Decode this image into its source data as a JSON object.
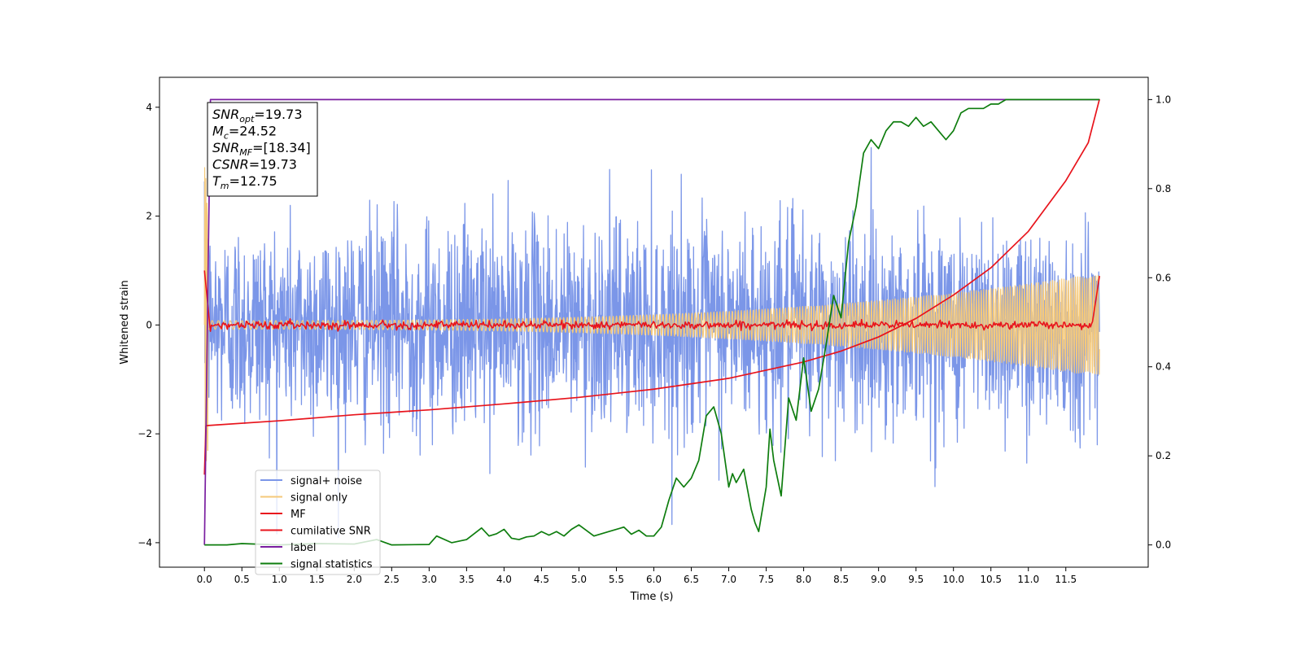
{
  "chart_data": {
    "type": "line",
    "xlabel": "Time (s)",
    "ylabel": "Whitened strain",
    "xlim": [
      -0.6,
      12.6
    ],
    "ylim": [
      -4.45,
      4.55
    ],
    "y2lim": [
      -0.05,
      1.05
    ],
    "x_ticks": [
      0,
      0.5,
      1,
      1.5,
      2,
      2.5,
      3,
      3.5,
      4,
      4.5,
      5,
      5.5,
      6,
      6.5,
      7,
      7.5,
      8,
      8.5,
      9,
      9.5,
      10,
      10.5,
      11,
      11.5
    ],
    "x_tick_labels": [
      "0.0",
      "0.5",
      "1.0",
      "1.5",
      "2.0",
      "2.5",
      "3.0",
      "3.5",
      "4.0",
      "4.5",
      "5.0",
      "5.5",
      "6.0",
      "6.5",
      "7.0",
      "7.5",
      "8.0",
      "8.5",
      "9.0",
      "9.5",
      "10.0",
      "10.5",
      "11.0",
      "11.5"
    ],
    "y_ticks": [
      -4,
      -2,
      0,
      2,
      4
    ],
    "y_tick_labels": [
      "−4",
      "−2",
      "0",
      "2",
      "4"
    ],
    "y2_ticks": [
      0,
      0.2,
      0.4,
      0.6,
      0.8,
      1.0
    ],
    "y2_tick_labels": [
      "0.0",
      "0.2",
      "0.4",
      "0.6",
      "0.8",
      "1.0"
    ],
    "grid": false,
    "legend_position": "lower-left",
    "annotation": {
      "lines": [
        {
          "sym": "SNR",
          "sub": "opt",
          "value": "=19.73"
        },
        {
          "sym": "M",
          "sub": "c",
          "value": "=24.52"
        },
        {
          "sym": "SNR",
          "sub": "MF",
          "value": "=[18.34]"
        },
        {
          "sym": "CSNR",
          "sub": "",
          "value": "=19.73"
        },
        {
          "sym": "T",
          "sub": "m",
          "value": "=12.75"
        }
      ]
    },
    "series": [
      {
        "name": "signal+ noise",
        "color": "#7b96e8",
        "axis": "left",
        "style": "noise",
        "noise_std": 0.95,
        "x_start": 0,
        "x_end": 11.95
      },
      {
        "name": "signal only",
        "color": "#f5c97a",
        "axis": "left",
        "style": "chirp",
        "amplitude_start": 0.08,
        "amplitude_end": 0.95,
        "x_start": 0,
        "x_end": 11.95
      },
      {
        "name": "MF",
        "color": "#e8141c",
        "axis": "left",
        "style": "mf",
        "x_start": 0,
        "x_end": 11.95
      },
      {
        "name": "cumilative SNR",
        "color": "#e8141c",
        "axis": "left",
        "x": [
          0.0,
          0.02,
          1.0,
          2.0,
          3.0,
          4.0,
          5.0,
          6.0,
          7.0,
          8.0,
          8.5,
          9.0,
          9.5,
          10.0,
          10.5,
          11.0,
          11.5,
          11.8,
          11.95
        ],
        "y": [
          -2.75,
          -1.85,
          -1.76,
          -1.65,
          -1.56,
          -1.45,
          -1.33,
          -1.18,
          -0.98,
          -0.68,
          -0.48,
          -0.22,
          0.12,
          0.55,
          1.05,
          1.72,
          2.65,
          3.35,
          4.15
        ]
      },
      {
        "name": "label",
        "color": "#7a1ea0",
        "axis": "right",
        "x": [
          0.0,
          0.08,
          11.95
        ],
        "y": [
          0.0,
          1.0,
          1.0
        ]
      },
      {
        "name": "signal statistics",
        "color": "#0e7d0e",
        "axis": "right",
        "x": [
          0.0,
          0.3,
          0.5,
          1.0,
          1.5,
          2.0,
          2.3,
          2.5,
          3.0,
          3.1,
          3.3,
          3.5,
          3.7,
          3.8,
          3.9,
          4.0,
          4.1,
          4.2,
          4.3,
          4.4,
          4.5,
          4.6,
          4.7,
          4.8,
          4.9,
          5.0,
          5.2,
          5.4,
          5.6,
          5.7,
          5.8,
          5.9,
          6.0,
          6.1,
          6.2,
          6.3,
          6.4,
          6.5,
          6.6,
          6.7,
          6.8,
          6.9,
          7.0,
          7.05,
          7.1,
          7.2,
          7.3,
          7.35,
          7.4,
          7.5,
          7.55,
          7.6,
          7.7,
          7.8,
          7.9,
          8.0,
          8.1,
          8.2,
          8.3,
          8.4,
          8.5,
          8.6,
          8.7,
          8.8,
          8.9,
          9.0,
          9.1,
          9.2,
          9.3,
          9.4,
          9.5,
          9.6,
          9.7,
          9.8,
          9.9,
          10.0,
          10.1,
          10.2,
          10.3,
          10.4,
          10.5,
          10.6,
          10.7,
          10.8,
          10.9,
          11.0,
          11.5,
          11.95
        ],
        "y": [
          0.0,
          0.0,
          0.003,
          0.0,
          0.003,
          0.002,
          0.012,
          0.0,
          0.001,
          0.02,
          0.005,
          0.012,
          0.038,
          0.02,
          0.025,
          0.035,
          0.015,
          0.012,
          0.018,
          0.02,
          0.03,
          0.022,
          0.03,
          0.02,
          0.035,
          0.045,
          0.02,
          0.03,
          0.04,
          0.024,
          0.033,
          0.02,
          0.02,
          0.04,
          0.1,
          0.15,
          0.13,
          0.15,
          0.19,
          0.29,
          0.31,
          0.25,
          0.13,
          0.16,
          0.14,
          0.17,
          0.08,
          0.05,
          0.03,
          0.13,
          0.26,
          0.19,
          0.11,
          0.33,
          0.28,
          0.42,
          0.3,
          0.35,
          0.45,
          0.56,
          0.51,
          0.68,
          0.76,
          0.88,
          0.91,
          0.89,
          0.93,
          0.95,
          0.95,
          0.94,
          0.96,
          0.94,
          0.95,
          0.93,
          0.91,
          0.93,
          0.97,
          0.98,
          0.98,
          0.98,
          0.99,
          0.99,
          1.0,
          1.0,
          1.0,
          1.0,
          1.0,
          1.0
        ]
      }
    ]
  }
}
